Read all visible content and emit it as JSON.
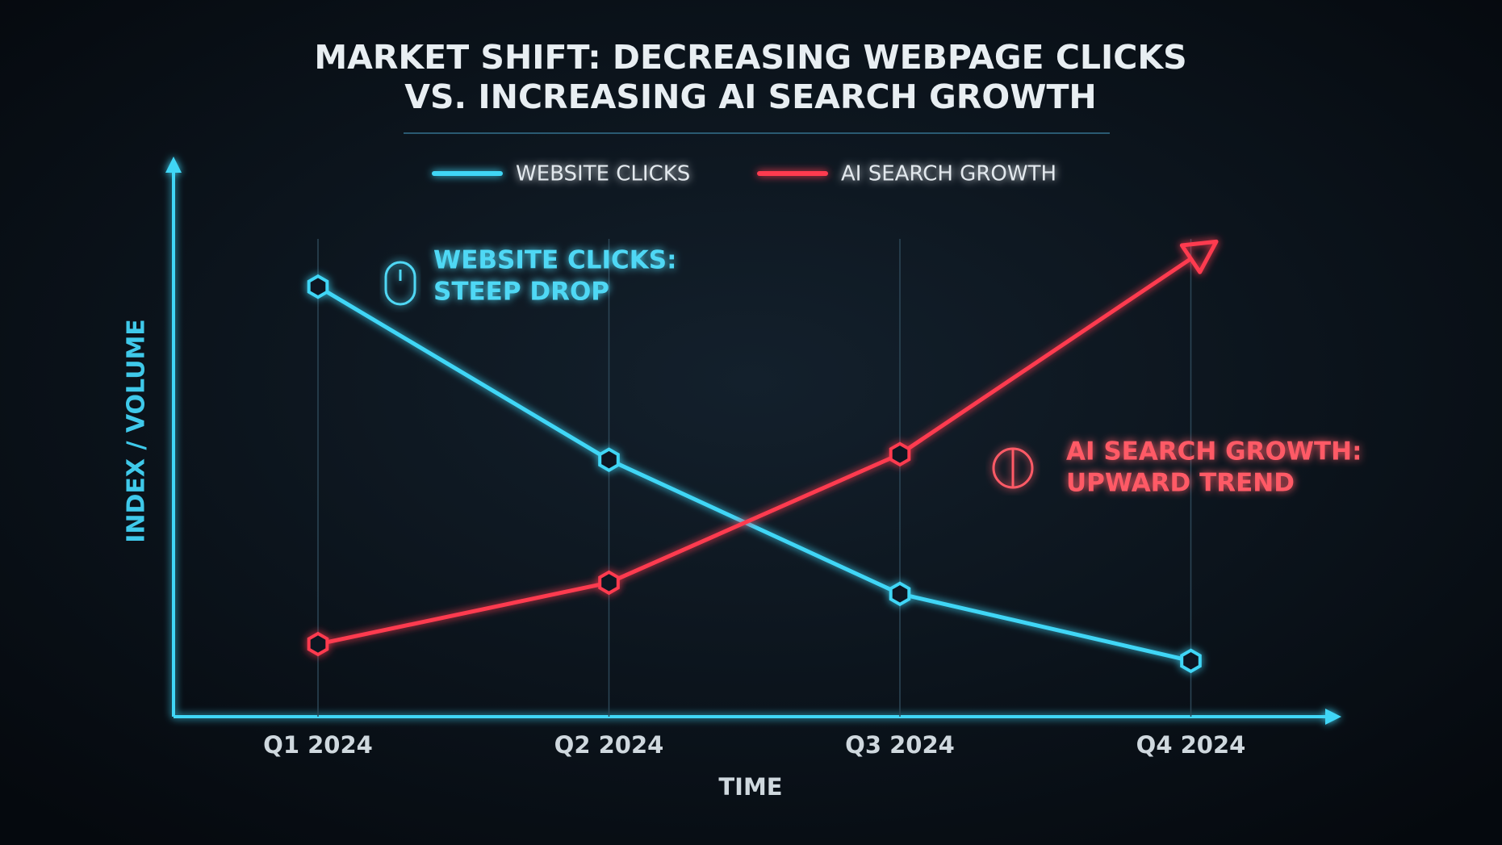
{
  "chart_data": {
    "type": "line",
    "title": [
      "MARKET SHIFT: DECREASING WEBPAGE CLICKS",
      "VS. INCREASING AI SEARCH GROWTH"
    ],
    "x_label": "TIME",
    "y_label": "INDEX / VOLUME",
    "categories": [
      "Q1 2024",
      "Q2 2024",
      "Q3 2024",
      "Q4 2024"
    ],
    "series": [
      {
        "name": "WEBSITE CLICKS",
        "color": "#3fd6f6",
        "values": [
          77,
          46,
          22,
          10
        ]
      },
      {
        "name": "AI SEARCH GROWTH",
        "color": "#ff3a4f",
        "values": [
          13,
          24,
          47,
          82
        ]
      }
    ],
    "ylim": [
      0,
      100
    ],
    "annotations": [
      {
        "lines": [
          "WEBSITE CLICKS:",
          "STEEP DROP"
        ],
        "color": "#4fd8f5"
      },
      {
        "lines": [
          "AI SEARCH GROWTH:",
          "UPWARD TREND"
        ],
        "color": "#ff5a66"
      }
    ]
  }
}
